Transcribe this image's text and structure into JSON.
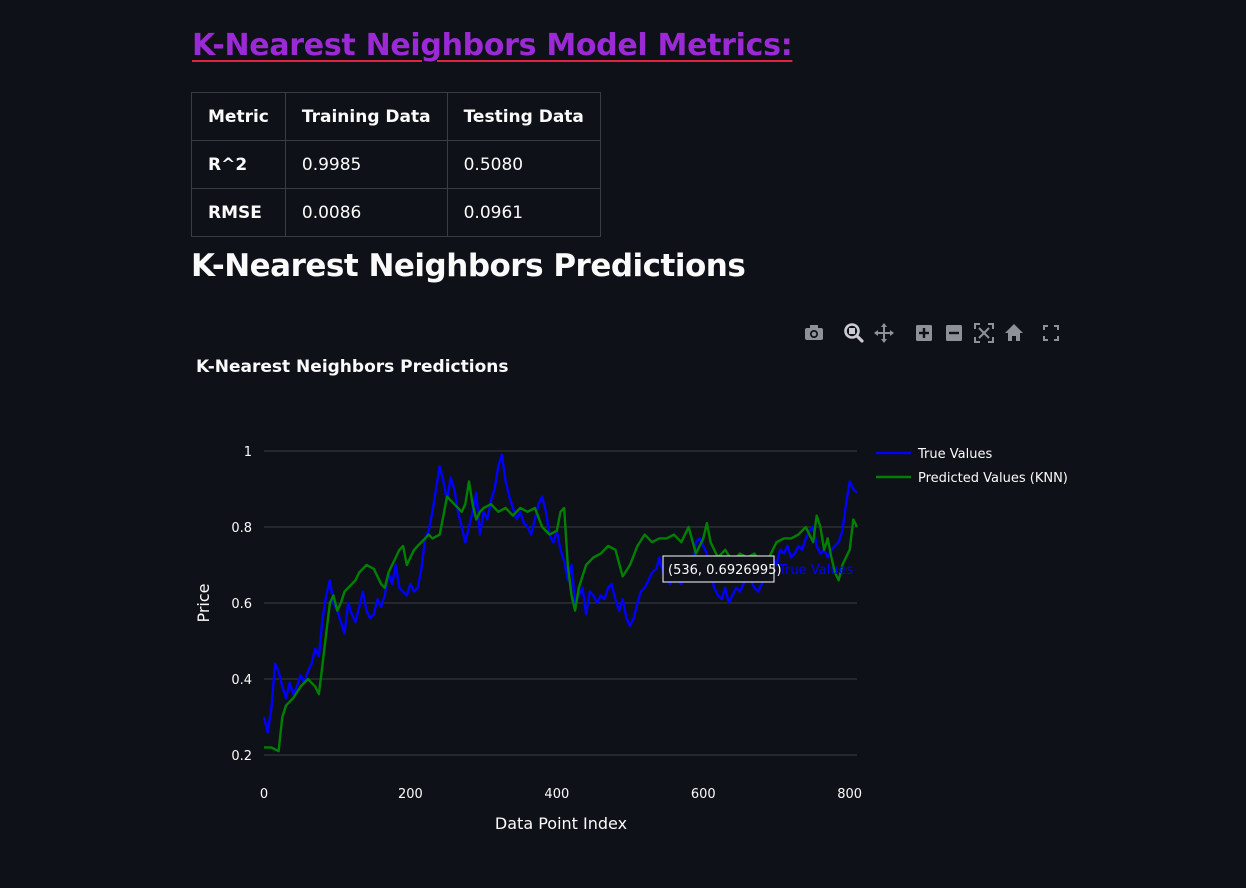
{
  "metrics": {
    "heading": "K-Nearest Neighbors Model Metrics:",
    "columns": [
      "Metric",
      "Training Data",
      "Testing Data"
    ],
    "rows": [
      [
        "R^2",
        "0.9985",
        "0.5080"
      ],
      [
        "RMSE",
        "0.0086",
        "0.0961"
      ]
    ]
  },
  "predictions_heading": "K-Nearest Neighbors Predictions",
  "modebar": [
    "camera-icon",
    "zoom-icon",
    "pan-icon",
    "zoom-in-icon",
    "zoom-out-icon",
    "autoscale-icon",
    "home-icon",
    "fullscreen-icon"
  ],
  "tooltip": {
    "text": "(536, 0.6926995)",
    "series": "True Values"
  },
  "chart_data": {
    "type": "line",
    "title": "K-Nearest Neighbors Predictions",
    "xlabel": "Data Point Index",
    "ylabel": "Price",
    "xlim": [
      0,
      810
    ],
    "ylim": [
      0.2,
      1.0
    ],
    "xticks": [
      0,
      200,
      400,
      600,
      800
    ],
    "yticks": [
      0.2,
      0.4,
      0.6,
      0.8,
      1
    ],
    "grid": true,
    "legend_position": "right",
    "background": "#0e1117",
    "series": [
      {
        "name": "True Values",
        "color": "#0000ff",
        "x": [
          0,
          5,
          10,
          15,
          20,
          25,
          30,
          35,
          40,
          45,
          50,
          55,
          60,
          65,
          70,
          75,
          80,
          85,
          90,
          95,
          100,
          105,
          110,
          115,
          120,
          125,
          130,
          135,
          140,
          145,
          150,
          155,
          160,
          165,
          170,
          175,
          180,
          185,
          190,
          195,
          200,
          205,
          210,
          215,
          220,
          225,
          230,
          235,
          240,
          245,
          250,
          255,
          260,
          265,
          270,
          275,
          280,
          285,
          290,
          295,
          300,
          305,
          310,
          315,
          320,
          325,
          330,
          335,
          340,
          345,
          350,
          355,
          360,
          365,
          370,
          375,
          380,
          385,
          390,
          395,
          400,
          405,
          410,
          415,
          420,
          425,
          430,
          435,
          440,
          445,
          450,
          455,
          460,
          465,
          470,
          475,
          480,
          485,
          490,
          495,
          500,
          505,
          510,
          515,
          520,
          525,
          530,
          536,
          540,
          545,
          550,
          555,
          560,
          565,
          570,
          575,
          580,
          585,
          590,
          595,
          600,
          605,
          610,
          615,
          620,
          625,
          630,
          635,
          640,
          645,
          650,
          655,
          660,
          665,
          670,
          675,
          680,
          685,
          690,
          695,
          700,
          705,
          710,
          715,
          720,
          725,
          730,
          735,
          740,
          745,
          750,
          755,
          760,
          765,
          770,
          775,
          780,
          785,
          790,
          795,
          800,
          805,
          810
        ],
        "y": [
          0.3,
          0.26,
          0.32,
          0.44,
          0.42,
          0.38,
          0.35,
          0.39,
          0.36,
          0.38,
          0.41,
          0.39,
          0.42,
          0.44,
          0.48,
          0.46,
          0.56,
          0.62,
          0.66,
          0.6,
          0.58,
          0.55,
          0.52,
          0.6,
          0.57,
          0.55,
          0.59,
          0.63,
          0.58,
          0.56,
          0.57,
          0.61,
          0.59,
          0.62,
          0.68,
          0.65,
          0.7,
          0.64,
          0.63,
          0.62,
          0.65,
          0.63,
          0.64,
          0.69,
          0.77,
          0.79,
          0.84,
          0.9,
          0.96,
          0.92,
          0.87,
          0.93,
          0.9,
          0.84,
          0.8,
          0.76,
          0.8,
          0.84,
          0.89,
          0.78,
          0.84,
          0.82,
          0.87,
          0.9,
          0.96,
          0.99,
          0.92,
          0.88,
          0.85,
          0.82,
          0.84,
          0.81,
          0.8,
          0.78,
          0.82,
          0.86,
          0.88,
          0.84,
          0.78,
          0.76,
          0.79,
          0.74,
          0.71,
          0.66,
          0.7,
          0.6,
          0.62,
          0.64,
          0.57,
          0.63,
          0.62,
          0.6,
          0.62,
          0.61,
          0.64,
          0.65,
          0.61,
          0.58,
          0.61,
          0.56,
          0.54,
          0.56,
          0.6,
          0.63,
          0.64,
          0.66,
          0.68,
          0.69,
          0.72,
          0.68,
          0.66,
          0.65,
          0.68,
          0.66,
          0.65,
          0.67,
          0.71,
          0.7,
          0.76,
          0.77,
          0.75,
          0.73,
          0.68,
          0.64,
          0.62,
          0.61,
          0.64,
          0.6,
          0.62,
          0.64,
          0.63,
          0.65,
          0.68,
          0.66,
          0.64,
          0.63,
          0.65,
          0.67,
          0.69,
          0.72,
          0.7,
          0.74,
          0.73,
          0.75,
          0.72,
          0.73,
          0.75,
          0.74,
          0.77,
          0.79,
          0.8,
          0.75,
          0.73,
          0.74,
          0.72,
          0.74,
          0.75,
          0.76,
          0.79,
          0.86,
          0.92,
          0.9,
          0.89
        ]
      },
      {
        "name": "Predicted Values (KNN)",
        "color": "#008000",
        "x": [
          0,
          10,
          20,
          25,
          30,
          35,
          40,
          50,
          60,
          70,
          75,
          80,
          85,
          90,
          95,
          100,
          105,
          110,
          115,
          120,
          125,
          130,
          140,
          150,
          160,
          165,
          170,
          175,
          180,
          185,
          190,
          195,
          200,
          205,
          210,
          215,
          220,
          225,
          230,
          240,
          245,
          250,
          255,
          260,
          265,
          270,
          275,
          280,
          285,
          290,
          295,
          300,
          310,
          320,
          330,
          340,
          350,
          360,
          370,
          380,
          390,
          400,
          405,
          410,
          415,
          420,
          425,
          430,
          440,
          450,
          460,
          470,
          480,
          490,
          500,
          510,
          520,
          530,
          540,
          550,
          560,
          570,
          580,
          590,
          600,
          605,
          610,
          620,
          630,
          640,
          650,
          660,
          670,
          680,
          690,
          700,
          710,
          720,
          730,
          740,
          750,
          755,
          760,
          765,
          770,
          775,
          780,
          785,
          790,
          795,
          800,
          805,
          810
        ],
        "y": [
          0.22,
          0.22,
          0.21,
          0.3,
          0.33,
          0.34,
          0.35,
          0.38,
          0.4,
          0.38,
          0.36,
          0.44,
          0.52,
          0.6,
          0.62,
          0.58,
          0.6,
          0.63,
          0.64,
          0.65,
          0.66,
          0.68,
          0.7,
          0.69,
          0.65,
          0.64,
          0.68,
          0.7,
          0.72,
          0.74,
          0.75,
          0.7,
          0.72,
          0.74,
          0.75,
          0.76,
          0.77,
          0.78,
          0.77,
          0.78,
          0.83,
          0.88,
          0.87,
          0.86,
          0.85,
          0.84,
          0.86,
          0.92,
          0.86,
          0.82,
          0.84,
          0.85,
          0.86,
          0.84,
          0.85,
          0.83,
          0.85,
          0.84,
          0.85,
          0.8,
          0.78,
          0.79,
          0.84,
          0.85,
          0.7,
          0.62,
          0.58,
          0.64,
          0.7,
          0.72,
          0.73,
          0.75,
          0.74,
          0.67,
          0.7,
          0.75,
          0.78,
          0.76,
          0.77,
          0.77,
          0.78,
          0.76,
          0.8,
          0.73,
          0.77,
          0.81,
          0.76,
          0.72,
          0.74,
          0.71,
          0.73,
          0.72,
          0.73,
          0.7,
          0.72,
          0.76,
          0.77,
          0.77,
          0.78,
          0.8,
          0.76,
          0.83,
          0.8,
          0.74,
          0.77,
          0.72,
          0.68,
          0.66,
          0.7,
          0.72,
          0.74,
          0.82,
          0.8
        ]
      }
    ]
  }
}
